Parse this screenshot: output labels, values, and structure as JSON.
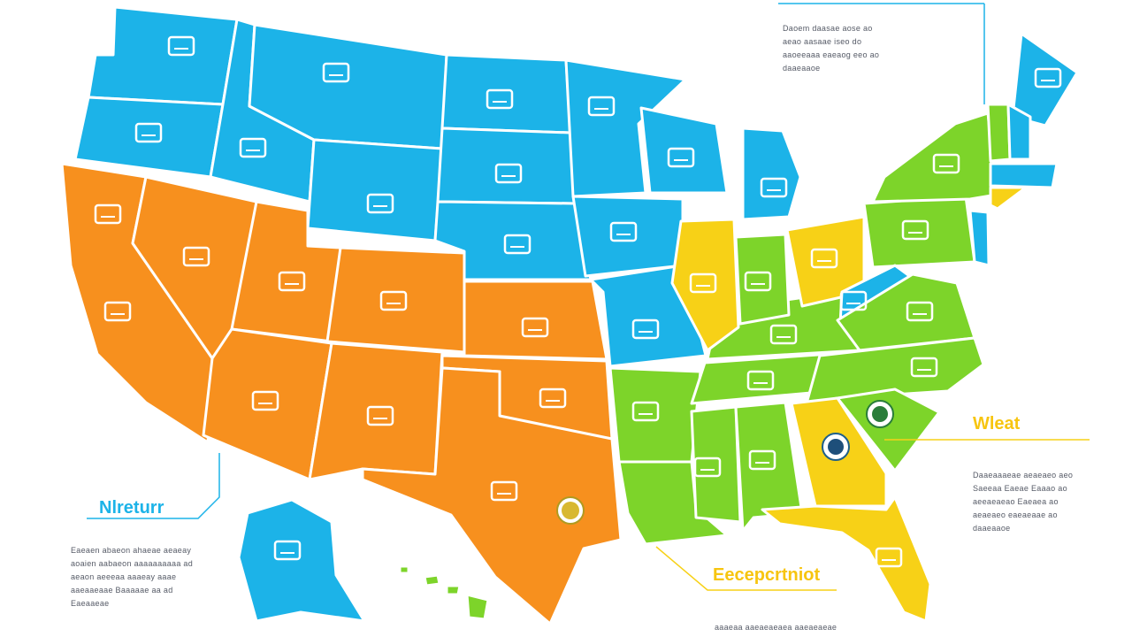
{
  "top_note": {
    "lines": [
      "Daoem daasae aose ao",
      "aeao aasaae iseo do",
      "aaoeeaaa eaeaog eeo ao",
      "daaeaaoe"
    ]
  },
  "callouts": [
    {
      "title": "Wleat",
      "lines": [
        "Daaeaaaeae aeaeaeo aeo",
        "Saeeaa Eaeae Eaaao ao",
        "aeeaeaeao Eaeaea ao",
        "aeaeaeo eaeaeaae ao",
        "daaeaaoe"
      ]
    },
    {
      "title": "Nlreturr",
      "lines": [
        "Eaeaen abaeon ahaeae aeaeay",
        "aoaien aabaeon aaaaaaaaaa ad",
        "aeaon aeeeaa aaaeay aaae",
        "aaeaaeaae Baaaaae aa ad",
        "Eaeaaeae"
      ]
    },
    {
      "title": "Eecepcrtniot",
      "lines": [
        "aaaeaa aaeaeaeaea aaeaeaeae"
      ]
    }
  ]
}
